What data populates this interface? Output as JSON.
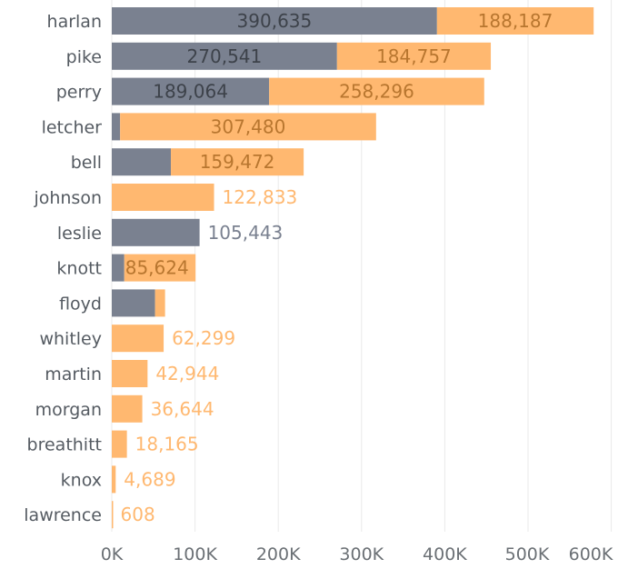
{
  "chart_data": {
    "type": "bar",
    "orientation": "horizontal",
    "stacked": true,
    "categories": [
      "harlan",
      "pike",
      "perry",
      "letcher",
      "bell",
      "johnson",
      "leslie",
      "knott",
      "floyd",
      "whitley",
      "martin",
      "morgan",
      "breathitt",
      "knox",
      "lawrence"
    ],
    "series": [
      {
        "color": "#7a8190",
        "label_color": "#3d424a",
        "outside_label_color": "#7a8190",
        "values": [
          390635,
          270541,
          189064,
          10000,
          71000,
          0,
          105443,
          15000,
          52000,
          0,
          0,
          0,
          0,
          0,
          0
        ],
        "labels": [
          "390,635",
          "270,541",
          "189,064",
          "",
          "",
          "",
          "105,443",
          "",
          "",
          "",
          "",
          "",
          "",
          "",
          ""
        ]
      },
      {
        "color": "#ffb870",
        "label_color": "#b8762f",
        "outside_label_color": "#ffb870",
        "values": [
          188187,
          184757,
          258296,
          307480,
          159472,
          122833,
          0,
          85624,
          12000,
          62299,
          42944,
          36644,
          18165,
          4689,
          608
        ],
        "labels": [
          "188,187",
          "184,757",
          "258,296",
          "307,480",
          "159,472",
          "122,833",
          "",
          "85,624",
          "",
          "62,299",
          "42,944",
          "36,644",
          "18,165",
          "4,689",
          "608"
        ]
      }
    ],
    "x_ticks": [
      0,
      100000,
      200000,
      300000,
      400000,
      500000,
      600000
    ],
    "x_tick_labels": [
      "0K",
      "100K",
      "200K",
      "300K",
      "400K",
      "500K",
      "600K"
    ],
    "xlim": [
      0,
      610000
    ],
    "grid": true,
    "title": "",
    "xlabel": "",
    "ylabel": ""
  }
}
